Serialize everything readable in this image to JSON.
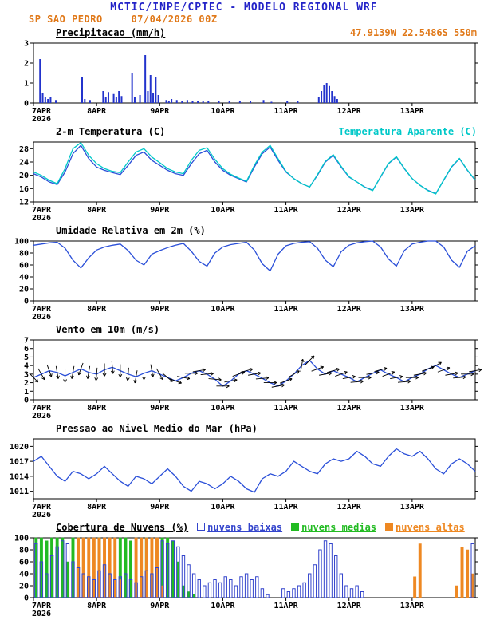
{
  "header": {
    "title": "MCTIC/INPE/CPTEC - MODELO REGIONAL WRF",
    "station": "SP SAO PEDRO",
    "run_time": "07/04/2026 00Z",
    "coords": "47.9139W 22.5486S 550m"
  },
  "colors": {
    "header_blue": "#2323c8",
    "orange": "#e07818",
    "line_blue": "#2a4fd8",
    "cyan": "#00c8c8",
    "axis_black": "#000000"
  },
  "x_axis": {
    "hours_total": 168,
    "tick_hours": [
      0,
      24,
      48,
      72,
      96,
      120,
      144
    ],
    "tick_labels": [
      "7APR",
      "8APR",
      "9APR",
      "10APR",
      "11APR",
      "12APR",
      "13APR"
    ],
    "year_label": "2026"
  },
  "chart_data": [
    {
      "id": "precipitation",
      "type": "bar",
      "title": "Precipitacao (mm/h)",
      "ylim": [
        0,
        3
      ],
      "yticks": [
        0,
        1,
        2,
        3
      ],
      "step_hours": 1,
      "n": 168,
      "bar_color": "#2233cc",
      "values_sparse": {
        "2": 2.2,
        "3": 0.5,
        "4": 0.3,
        "5": 0.2,
        "6": 0.3,
        "8": 0.15,
        "18": 1.3,
        "19": 0.2,
        "21": 0.15,
        "26": 0.6,
        "27": 0.3,
        "28": 0.55,
        "30": 0.45,
        "31": 0.3,
        "32": 0.6,
        "33": 0.35,
        "37": 1.5,
        "38": 0.3,
        "40": 0.4,
        "42": 2.4,
        "43": 0.6,
        "44": 1.4,
        "45": 0.5,
        "46": 1.3,
        "47": 0.4,
        "50": 0.15,
        "51": 0.1,
        "52": 0.2,
        "54": 0.15,
        "56": 0.1,
        "58": 0.15,
        "60": 0.1,
        "62": 0.12,
        "64": 0.1,
        "66": 0.08,
        "70": 0.1,
        "74": 0.08,
        "78": 0.1,
        "82": 0.08,
        "87": 0.15,
        "90": 0.06,
        "96": 0.1,
        "100": 0.12,
        "108": 0.3,
        "109": 0.6,
        "110": 0.9,
        "111": 1.0,
        "112": 0.85,
        "113": 0.6,
        "114": 0.35,
        "115": 0.2
      }
    },
    {
      "id": "temperature",
      "type": "line",
      "title": "2-m Temperatura (C)",
      "title_right": "Temperatura Aparente (C)",
      "ylim": [
        12,
        30
      ],
      "yticks": [
        12,
        16,
        20,
        24,
        28
      ],
      "step_hours": 3,
      "series": [
        {
          "name": "2-m Temperatura (C)",
          "color": "#2a4fd8",
          "values": [
            20.5,
            19.5,
            18.0,
            17.2,
            21.0,
            26.5,
            29.0,
            25.0,
            22.5,
            21.5,
            20.8,
            20.2,
            23.0,
            26.0,
            27.0,
            24.5,
            23.0,
            21.5,
            20.5,
            20.0,
            23.5,
            26.5,
            27.5,
            24.0,
            21.5,
            20.0,
            19.0,
            18.0,
            22.5,
            26.5,
            28.5,
            24.5,
            21.0,
            19.0,
            17.5,
            16.5,
            20.0,
            24.0,
            26.0,
            22.5,
            19.5,
            18.0,
            16.5,
            15.5,
            19.5,
            23.5,
            25.5,
            22.0,
            19.0,
            17.0,
            15.5,
            14.5,
            18.5,
            22.5,
            25.0,
            21.5,
            18.5
          ]
        },
        {
          "name": "Temperatura Aparente (C)",
          "color": "#00c8c8",
          "values": [
            21.0,
            20.0,
            18.5,
            17.5,
            22.0,
            28.0,
            29.8,
            26.0,
            23.5,
            22.0,
            21.2,
            20.8,
            24.0,
            27.0,
            28.0,
            25.5,
            23.8,
            22.0,
            21.0,
            20.5,
            24.5,
            27.5,
            28.3,
            24.8,
            22.0,
            20.3,
            19.2,
            18.2,
            23.0,
            27.0,
            29.0,
            25.0,
            21.2,
            19.0,
            17.5,
            16.5,
            20.2,
            24.2,
            26.2,
            22.7,
            19.6,
            18.0,
            16.4,
            15.4,
            19.6,
            23.6,
            25.6,
            22.1,
            19.0,
            17.0,
            15.4,
            14.4,
            18.6,
            22.6,
            25.1,
            21.6,
            18.6
          ]
        }
      ]
    },
    {
      "id": "humidity",
      "type": "line",
      "title": "Umidade Relativa em 2m (%)",
      "ylim": [
        0,
        100
      ],
      "yticks": [
        0,
        20,
        40,
        60,
        80,
        100
      ],
      "step_hours": 3,
      "series": [
        {
          "name": "Umidade Relativa",
          "color": "#2a4fd8",
          "values": [
            93,
            95,
            97,
            98,
            88,
            68,
            55,
            72,
            85,
            90,
            93,
            95,
            84,
            68,
            60,
            78,
            84,
            89,
            93,
            96,
            83,
            66,
            58,
            80,
            90,
            94,
            96,
            98,
            85,
            62,
            50,
            78,
            92,
            96,
            98,
            99,
            88,
            68,
            57,
            82,
            93,
            97,
            99,
            100,
            90,
            70,
            58,
            84,
            95,
            98,
            100,
            100,
            90,
            68,
            56,
            83,
            92
          ]
        }
      ]
    },
    {
      "id": "wind",
      "type": "wind",
      "title": "Vento em 10m (m/s)",
      "ylim": [
        0,
        7
      ],
      "yticks": [
        0,
        1,
        2,
        3,
        4,
        5,
        6,
        7
      ],
      "step_hours": 3,
      "line_color": "#2a4fd8",
      "arrow_color": "#000000",
      "speed": [
        2.6,
        3.0,
        3.4,
        3.2,
        2.8,
        3.2,
        3.6,
        3.2,
        3.0,
        3.5,
        3.8,
        3.4,
        3.0,
        2.7,
        3.1,
        3.4,
        3.0,
        2.6,
        2.2,
        2.6,
        3.1,
        3.4,
        3.0,
        2.4,
        1.6,
        2.2,
        3.0,
        3.4,
        3.0,
        2.5,
        2.0,
        1.6,
        2.2,
        3.0,
        4.0,
        4.6,
        3.6,
        3.0,
        3.4,
        3.0,
        2.6,
        2.1,
        2.6,
        3.1,
        3.5,
        3.0,
        2.6,
        2.1,
        2.6,
        3.0,
        3.6,
        4.0,
        3.5,
        3.0,
        2.6,
        3.0,
        3.4
      ],
      "dir_deg": [
        -45,
        -60,
        -70,
        -80,
        -90,
        -100,
        -110,
        -100,
        -95,
        -90,
        -85,
        -90,
        -95,
        -100,
        -90,
        -80,
        -60,
        -40,
        -20,
        -10,
        0,
        10,
        5,
        -5,
        0,
        10,
        20,
        15,
        10,
        5,
        0,
        10,
        20,
        30,
        80,
        45,
        20,
        10,
        15,
        20,
        10,
        5,
        0,
        10,
        15,
        20,
        10,
        5,
        0,
        10,
        20,
        30,
        20,
        10,
        5,
        0,
        10
      ]
    },
    {
      "id": "pressure",
      "type": "line",
      "title": "Pressao ao Nivel Medio do Mar (hPa)",
      "ylim": [
        1009.5,
        1021.5
      ],
      "yticks": [
        1011,
        1014,
        1017,
        1020
      ],
      "step_hours": 3,
      "series": [
        {
          "name": "Pressao",
          "color": "#2a4fd8",
          "values": [
            1017.0,
            1018.0,
            1016.0,
            1014.0,
            1013.0,
            1015.0,
            1014.5,
            1013.5,
            1014.5,
            1016.0,
            1014.5,
            1013.0,
            1012.0,
            1014.0,
            1013.5,
            1012.5,
            1014.0,
            1015.5,
            1014.0,
            1012.0,
            1011.0,
            1013.0,
            1012.5,
            1011.5,
            1012.5,
            1014.0,
            1013.0,
            1011.5,
            1010.8,
            1013.5,
            1014.5,
            1014.0,
            1015.0,
            1017.0,
            1016.0,
            1015.0,
            1014.5,
            1016.5,
            1017.5,
            1017.0,
            1017.5,
            1019.0,
            1018.0,
            1016.5,
            1016.0,
            1018.0,
            1019.5,
            1018.5,
            1018.0,
            1019.0,
            1017.5,
            1015.5,
            1014.5,
            1016.5,
            1017.5,
            1016.5,
            1015.0
          ]
        }
      ]
    },
    {
      "id": "clouds",
      "type": "cloudbars",
      "title": "Cobertura de Nuvens (%)",
      "ylim": [
        0,
        100
      ],
      "yticks": [
        0,
        20,
        40,
        60,
        80,
        100
      ],
      "step_hours": 2,
      "draw_order": [
        1,
        2,
        0
      ],
      "series": [
        {
          "name": "nuvens baixas",
          "color": "#3344cc",
          "style": "outline",
          "values": [
            90,
            60,
            40,
            70,
            85,
            95,
            90,
            60,
            50,
            40,
            35,
            30,
            45,
            55,
            40,
            30,
            35,
            40,
            30,
            25,
            35,
            45,
            40,
            50,
            95,
            90,
            95,
            85,
            70,
            55,
            40,
            30,
            20,
            25,
            30,
            25,
            35,
            30,
            20,
            35,
            40,
            30,
            35,
            15,
            5,
            0,
            0,
            15,
            10,
            15,
            20,
            25,
            40,
            55,
            80,
            95,
            90,
            70,
            40,
            20,
            15,
            20,
            10,
            0,
            0,
            0,
            0,
            0,
            0,
            0,
            0,
            0,
            0,
            0,
            0,
            0,
            0,
            0,
            0,
            0,
            0,
            0,
            0,
            90
          ]
        },
        {
          "name": "nuvens medias",
          "color": "#22bb22",
          "style": "fill",
          "values": [
            100,
            100,
            95,
            100,
            100,
            100,
            60,
            100,
            100,
            40,
            20,
            30,
            100,
            50,
            20,
            10,
            100,
            100,
            95,
            20,
            10,
            100,
            30,
            10,
            100,
            100,
            95,
            60,
            20,
            10,
            5,
            0,
            0,
            0,
            0,
            0,
            0,
            0,
            0,
            0,
            0,
            0,
            0,
            0,
            0,
            0,
            0,
            0,
            0,
            0,
            0,
            0,
            0,
            0,
            0,
            0,
            0,
            0,
            0,
            0,
            0,
            0,
            0,
            0,
            0,
            0,
            0,
            0,
            0,
            0,
            0,
            0,
            0,
            0,
            0,
            0,
            0,
            0,
            0,
            0,
            0,
            0,
            0,
            0
          ]
        },
        {
          "name": "nuvens altas",
          "color": "#ee8822",
          "style": "fill",
          "values": [
            0,
            0,
            0,
            0,
            0,
            0,
            0,
            0,
            100,
            100,
            100,
            100,
            100,
            100,
            100,
            100,
            30,
            0,
            0,
            100,
            100,
            100,
            100,
            100,
            20,
            0,
            0,
            0,
            0,
            0,
            0,
            0,
            0,
            0,
            0,
            0,
            0,
            0,
            0,
            0,
            0,
            0,
            0,
            0,
            0,
            0,
            0,
            0,
            0,
            0,
            0,
            0,
            0,
            0,
            0,
            0,
            0,
            0,
            0,
            0,
            0,
            0,
            0,
            0,
            0,
            0,
            0,
            0,
            0,
            0,
            0,
            0,
            35,
            90,
            0,
            0,
            0,
            0,
            0,
            0,
            20,
            85,
            80,
            40
          ]
        }
      ]
    }
  ]
}
